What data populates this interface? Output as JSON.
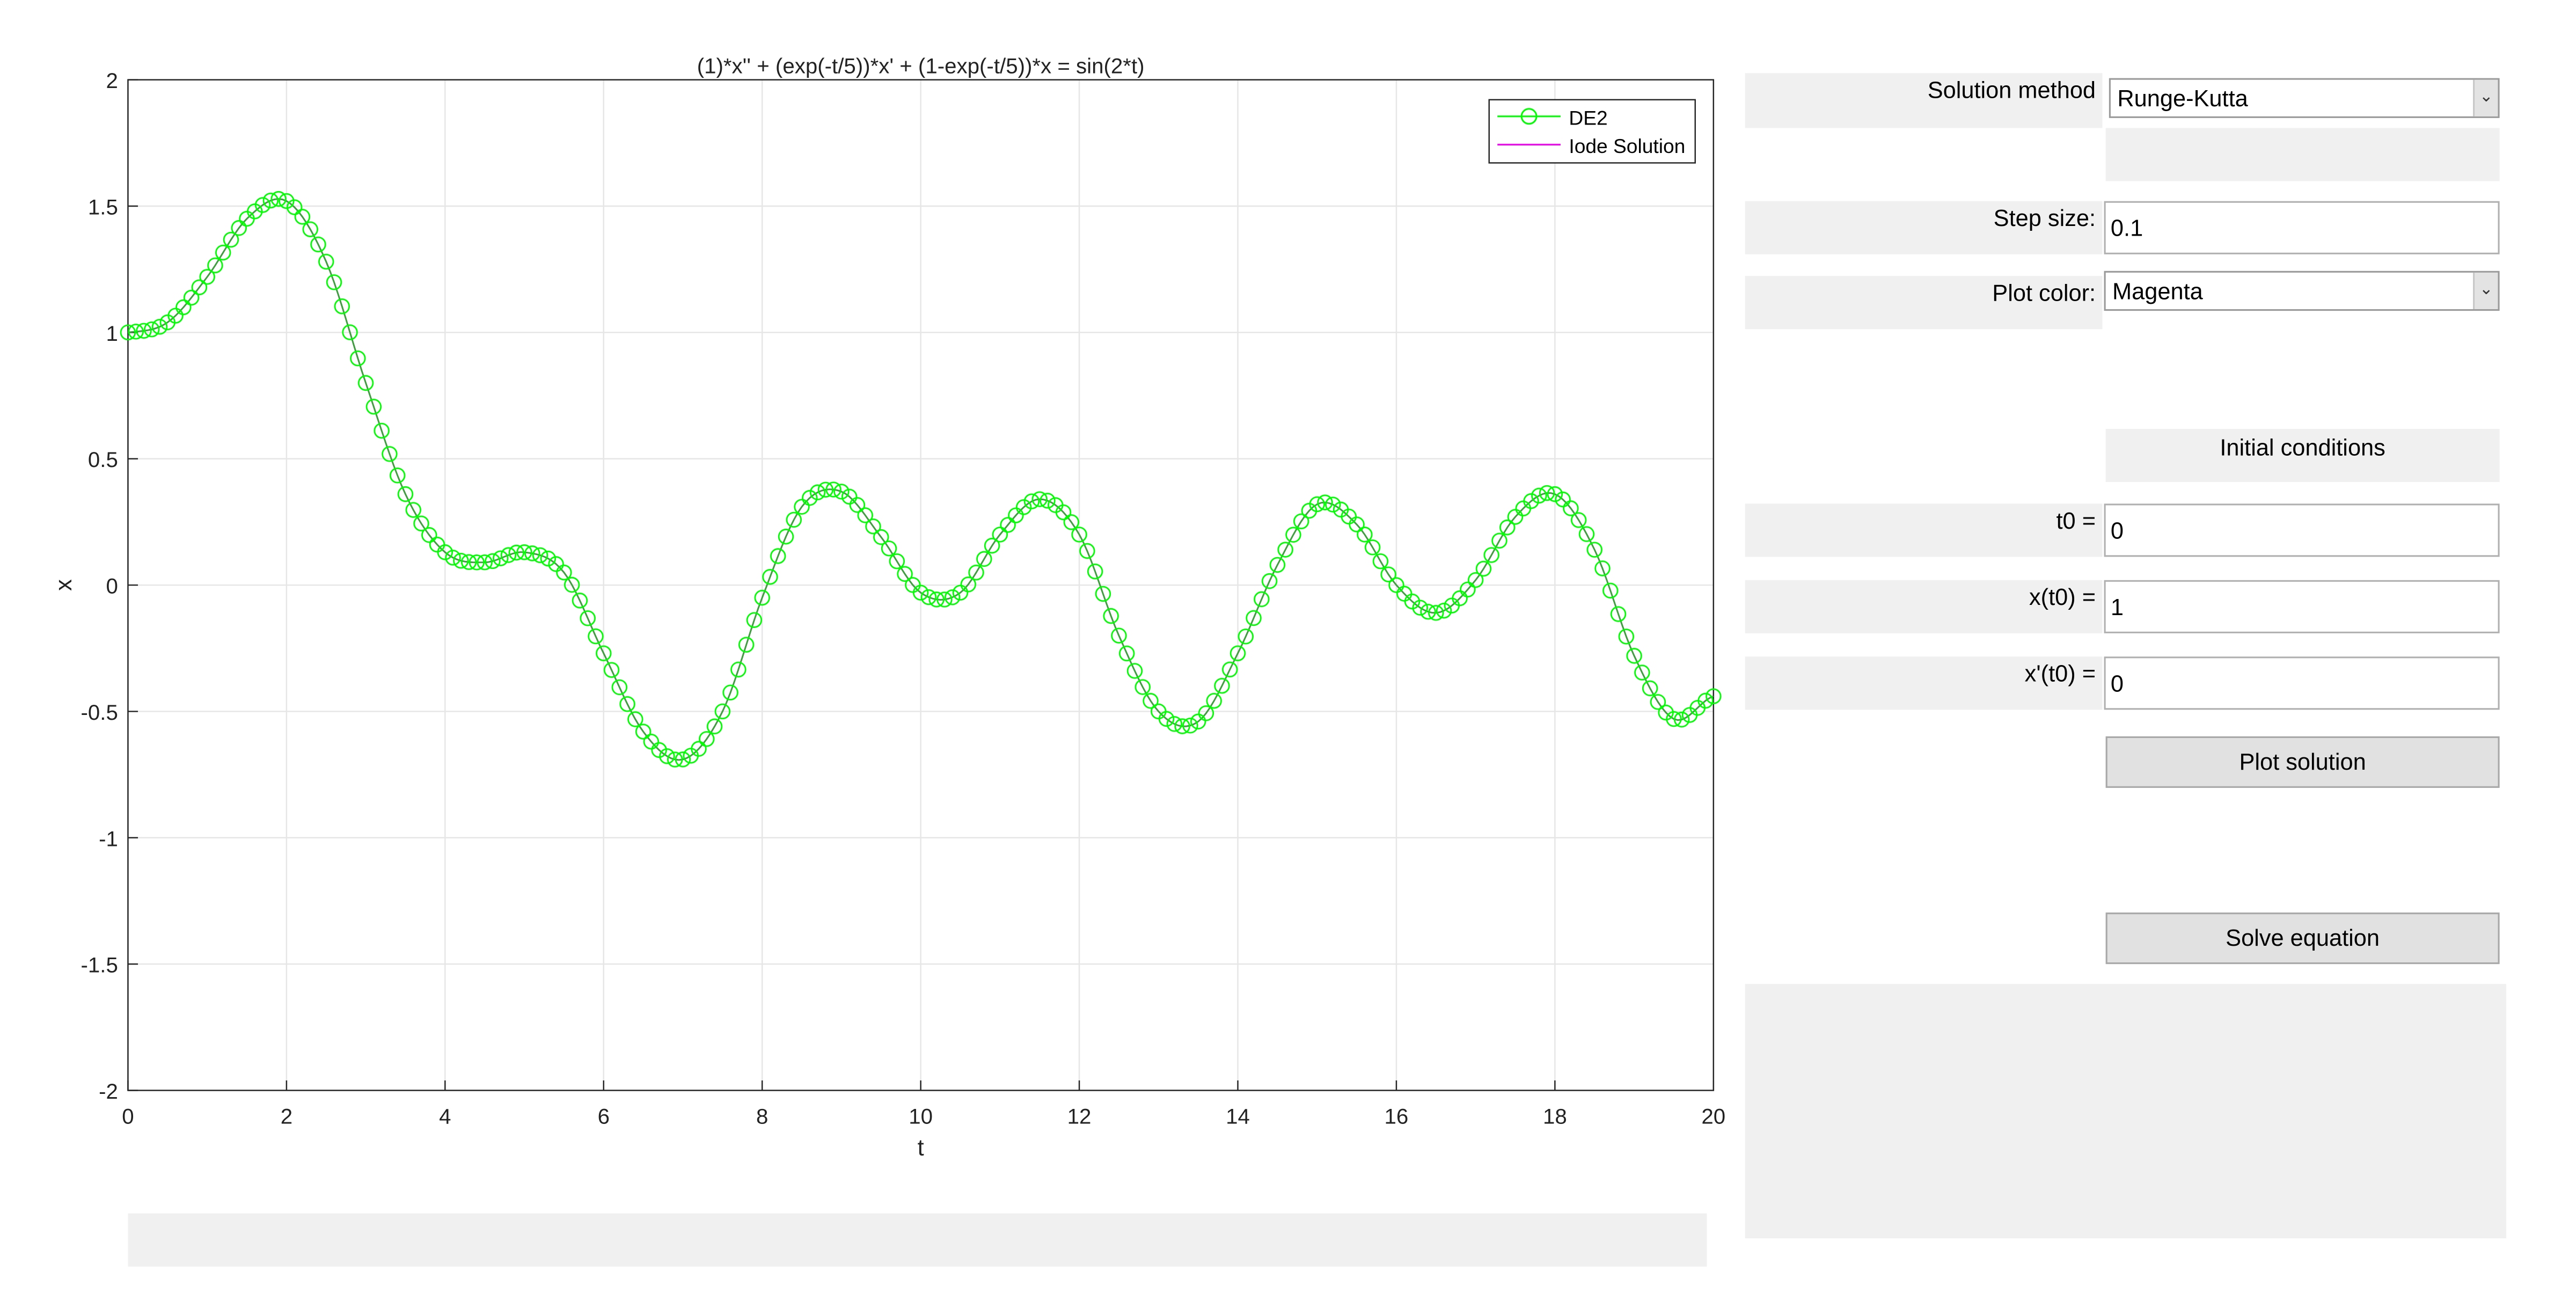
{
  "controls": {
    "solution_method_label": "Solution method",
    "solution_method_value": "Runge-Kutta",
    "step_size_label": "Step size:",
    "step_size_value": "0.1",
    "plot_color_label": "Plot color:",
    "plot_color_value": "Magenta",
    "initial_conditions_title": "Initial conditions",
    "t0_label": "t0 =",
    "t0_value": "0",
    "x0_label": "x(t0) =",
    "x0_value": "1",
    "dx0_label": "x'(t0) =",
    "dx0_value": "0",
    "plot_button": "Plot solution",
    "solve_button": "Solve equation"
  },
  "icons": {
    "dropdown_arrow": "chevron-down-icon"
  },
  "colors": {
    "de2": "#00ff00",
    "iode": "#ff00ff",
    "exact": "#333333",
    "panel": "#f0f0f0"
  },
  "chart_data": {
    "type": "line",
    "title": "(1)*x'' + (exp(-t/5))*x' + (1-exp(-t/5))*x = sin(2*t)",
    "xlabel": "t",
    "ylabel": "x",
    "xlim": [
      0,
      20
    ],
    "ylim": [
      -2,
      2
    ],
    "xticks": [
      0,
      2,
      4,
      6,
      8,
      10,
      12,
      14,
      16,
      18,
      20
    ],
    "xtick_labels": [
      "0",
      "2",
      "4",
      "6",
      "8",
      "10",
      "12",
      "14",
      "16",
      "18",
      "20"
    ],
    "yticks": [
      -2,
      -1.5,
      -1,
      -0.5,
      0,
      0.5,
      1,
      1.5,
      2
    ],
    "ytick_labels": [
      "-2",
      "-1.5",
      "-1",
      "-0.5",
      "0",
      "0.5",
      "1",
      "1.5",
      "2"
    ],
    "grid": true,
    "legend_position": "top-right",
    "x": [
      0,
      0.5,
      1,
      1.5,
      2,
      2.5,
      3,
      3.5,
      4,
      4.5,
      5,
      5.5,
      6,
      6.5,
      7,
      7.5,
      8,
      8.5,
      9,
      9.5,
      10,
      10.5,
      11,
      11.5,
      12,
      12.5,
      13,
      13.5,
      14,
      14.5,
      15,
      15.5,
      16,
      16.5,
      17,
      17.5,
      18,
      18.5,
      19,
      19.5,
      20
    ],
    "series": [
      {
        "name": "DE2",
        "marker": "circle",
        "values": [
          1.0,
          1.04,
          1.22,
          1.45,
          1.52,
          1.28,
          0.8,
          0.36,
          0.13,
          0.09,
          0.13,
          0.05,
          -0.27,
          -0.58,
          -0.69,
          -0.5,
          -0.05,
          0.31,
          0.37,
          0.19,
          -0.03,
          -0.03,
          0.2,
          0.34,
          0.2,
          -0.2,
          -0.5,
          -0.54,
          -0.27,
          0.08,
          0.32,
          0.24,
          0.0,
          -0.11,
          0.02,
          0.27,
          0.36,
          0.14,
          -0.28,
          -0.53,
          -0.44
        ]
      },
      {
        "name": "Iode Solution",
        "marker": "none",
        "values": [
          1.0,
          1.04,
          1.22,
          1.45,
          1.52,
          1.28,
          0.8,
          0.36,
          0.13,
          0.09,
          0.13,
          0.05,
          -0.27,
          -0.58,
          -0.69,
          -0.5,
          -0.05,
          0.31,
          0.37,
          0.19,
          -0.03,
          -0.03,
          0.2,
          0.34,
          0.2,
          -0.2,
          -0.5,
          -0.54,
          -0.27,
          0.08,
          0.32,
          0.24,
          0.0,
          -0.11,
          0.02,
          0.27,
          0.36,
          0.14,
          -0.28,
          -0.53,
          -0.44
        ]
      }
    ]
  }
}
